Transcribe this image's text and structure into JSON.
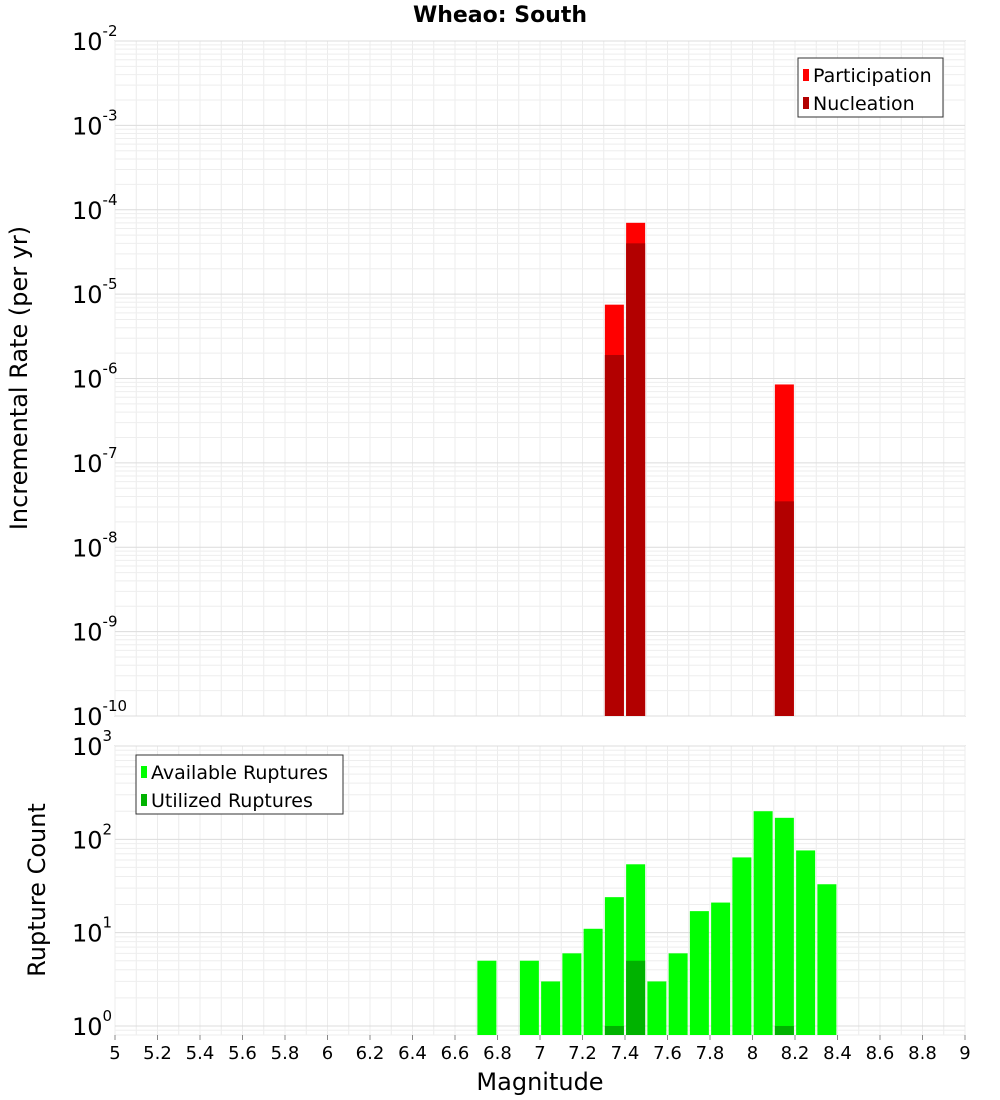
{
  "chart_data": [
    {
      "type": "bar",
      "title": "Wheao: South",
      "xlabel": "",
      "ylabel": "Incremental Rate (per yr)",
      "yscale": "log",
      "ylim": [
        1e-10,
        0.01
      ],
      "xlim": [
        5,
        9
      ],
      "y_tick_base": "10",
      "y_tick_exponents": [
        "-10",
        "-9",
        "-8",
        "-7",
        "-6",
        "-5",
        "-4",
        "-3",
        "-2"
      ],
      "legend_position": "top-right",
      "series": [
        {
          "name": "Participation",
          "color": "#ff0000",
          "points": [
            {
              "x": 7.35,
              "y": 7.5e-06
            },
            {
              "x": 7.45,
              "y": 7e-05
            },
            {
              "x": 8.15,
              "y": 8.5e-07
            }
          ]
        },
        {
          "name": "Nucleation",
          "color": "#b20000",
          "points": [
            {
              "x": 7.35,
              "y": 1.9e-06
            },
            {
              "x": 7.45,
              "y": 4e-05
            },
            {
              "x": 8.15,
              "y": 3.5e-08
            }
          ]
        }
      ]
    },
    {
      "type": "bar",
      "title": "",
      "xlabel": "Magnitude",
      "ylabel": "Rupture Count",
      "yscale": "log",
      "ylim": [
        0.8,
        1000
      ],
      "xlim": [
        5,
        9
      ],
      "x_ticks": [
        "5",
        "5.2",
        "5.4",
        "5.6",
        "5.8",
        "6",
        "6.2",
        "6.4",
        "6.6",
        "6.8",
        "7",
        "7.2",
        "7.4",
        "7.6",
        "7.8",
        "8",
        "8.2",
        "8.4",
        "8.6",
        "8.8",
        "9"
      ],
      "y_tick_base": "10",
      "y_tick_exponents": [
        "0",
        "1",
        "2",
        "3"
      ],
      "legend_position": "top-left",
      "series": [
        {
          "name": "Available Ruptures",
          "color": "#00ff00",
          "points": [
            {
              "x": 6.75,
              "y": 5
            },
            {
              "x": 6.95,
              "y": 5
            },
            {
              "x": 7.05,
              "y": 3
            },
            {
              "x": 7.15,
              "y": 6
            },
            {
              "x": 7.25,
              "y": 11
            },
            {
              "x": 7.35,
              "y": 24
            },
            {
              "x": 7.45,
              "y": 54
            },
            {
              "x": 7.55,
              "y": 3
            },
            {
              "x": 7.65,
              "y": 6
            },
            {
              "x": 7.75,
              "y": 17
            },
            {
              "x": 7.85,
              "y": 21
            },
            {
              "x": 7.95,
              "y": 64
            },
            {
              "x": 8.05,
              "y": 200
            },
            {
              "x": 8.15,
              "y": 170
            },
            {
              "x": 8.25,
              "y": 76
            },
            {
              "x": 8.35,
              "y": 33
            }
          ]
        },
        {
          "name": "Utilized Ruptures",
          "color": "#00b200",
          "points": [
            {
              "x": 7.35,
              "y": 1
            },
            {
              "x": 7.45,
              "y": 5
            },
            {
              "x": 8.15,
              "y": 1
            }
          ]
        }
      ]
    }
  ]
}
